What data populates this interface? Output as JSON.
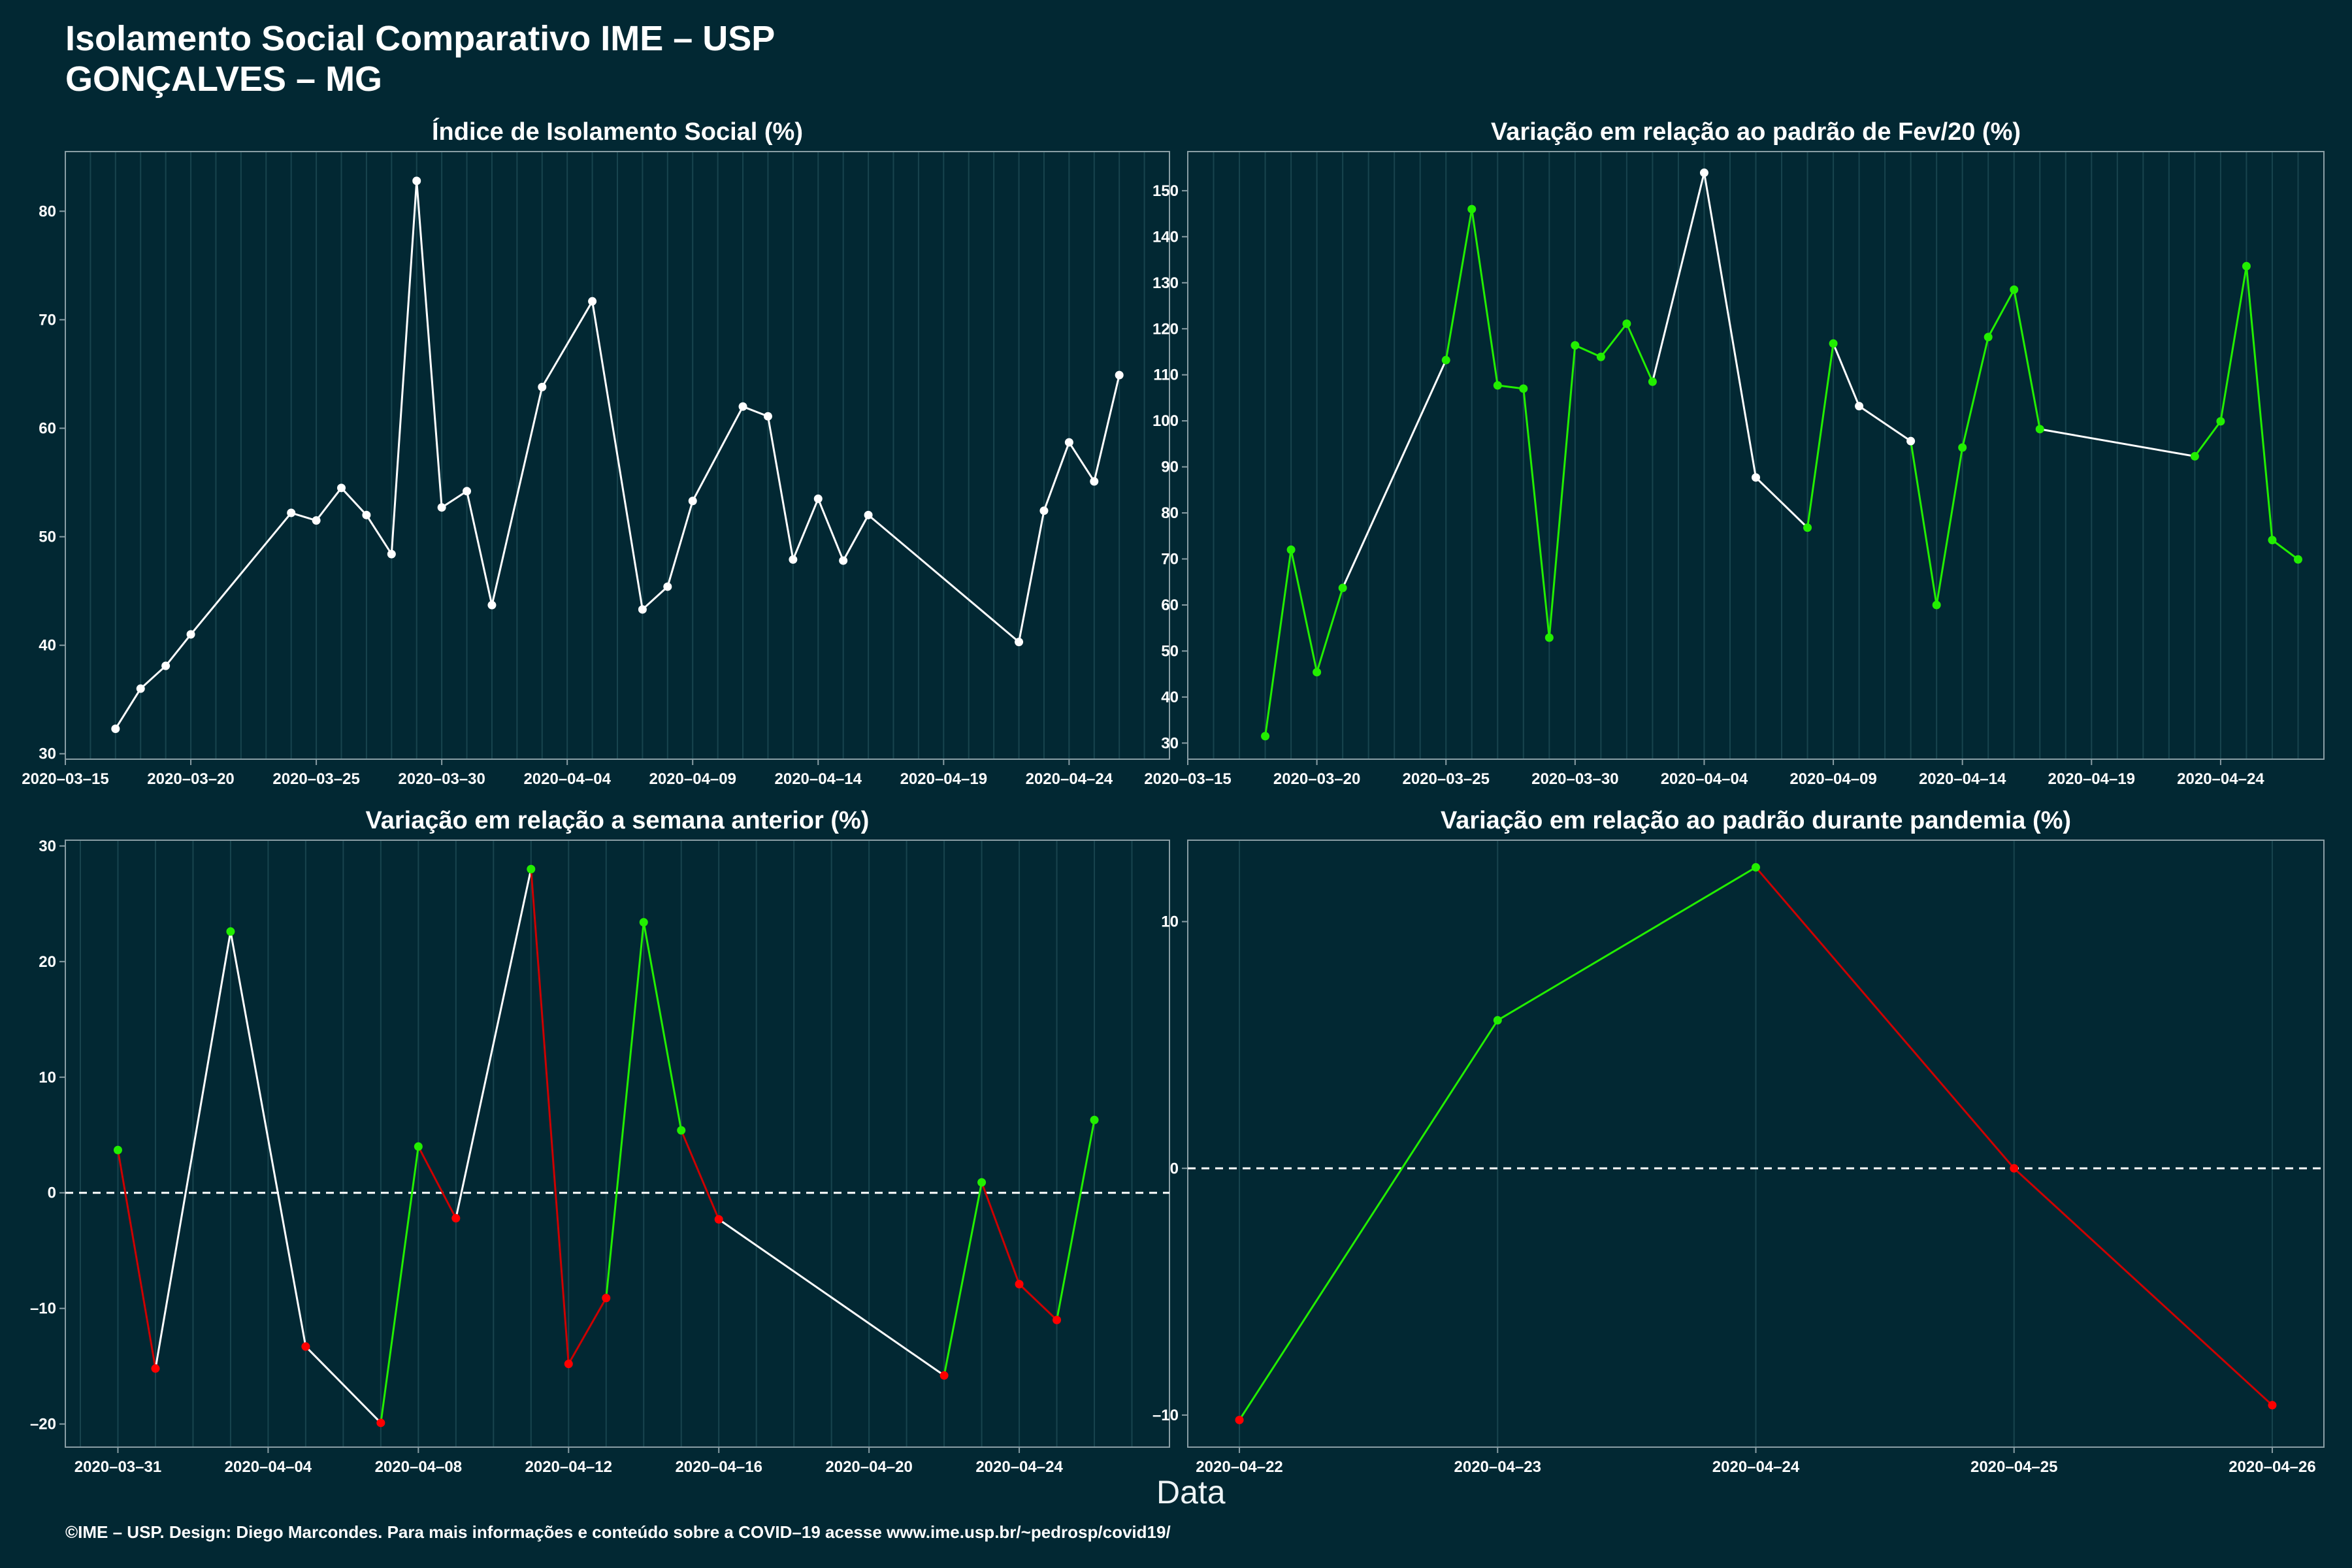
{
  "header": {
    "title_line1": "Isolamento Social Comparativo IME – USP",
    "title_line2": "GONÇALVES – MG"
  },
  "footer": {
    "credit": "©IME – USP. Design: Diego Marcondes. Para mais informações e conteúdo sobre a COVID–19 acesse www.ime.usp.br/~pedrosp/covid19/"
  },
  "shared_xlabel": "Data",
  "colors": {
    "background": "#022833",
    "line_neutral": "#ffffff",
    "line_up": "#22ee00",
    "line_down": "#cc0000",
    "point_up": "#22ee00",
    "point_down": "#ff0000",
    "grid": "#18444e",
    "axis_frame": "#8a9ea5"
  },
  "chart_data": [
    {
      "id": "p1",
      "type": "line",
      "title": "Índice de Isolamento Social (%)",
      "xlabel": "Data",
      "ylabel": "",
      "xlim": [
        "2020-03-15",
        "2020-04-28"
      ],
      "ylim": [
        29.5,
        85.5
      ],
      "xticks": [
        "2020-03-15",
        "2020-03-20",
        "2020-03-25",
        "2020-03-30",
        "2020-04-04",
        "2020-04-09",
        "2020-04-14",
        "2020-04-19",
        "2020-04-24"
      ],
      "yticks": [
        30,
        40,
        50,
        60,
        70,
        80
      ],
      "x": [
        "2020-03-17",
        "2020-03-18",
        "2020-03-19",
        "2020-03-20",
        "2020-03-24",
        "2020-03-25",
        "2020-03-26",
        "2020-03-27",
        "2020-03-28",
        "2020-03-29",
        "2020-03-30",
        "2020-03-31",
        "2020-04-01",
        "2020-04-03",
        "2020-04-05",
        "2020-04-07",
        "2020-04-08",
        "2020-04-09",
        "2020-04-11",
        "2020-04-12",
        "2020-04-13",
        "2020-04-14",
        "2020-04-15",
        "2020-04-16",
        "2020-04-22",
        "2020-04-23",
        "2020-04-24",
        "2020-04-25",
        "2020-04-26"
      ],
      "values": [
        32.3,
        36.0,
        38.1,
        41.0,
        52.2,
        51.5,
        54.5,
        52.0,
        48.4,
        82.8,
        52.7,
        54.2,
        43.7,
        63.8,
        71.7,
        43.3,
        45.4,
        53.3,
        62.0,
        61.1,
        47.9,
        53.5,
        47.8,
        52.0,
        40.3,
        52.4,
        58.7,
        55.1,
        64.9
      ],
      "segment_colors": [
        "neutral",
        "neutral",
        "neutral",
        "neutral",
        "neutral",
        "neutral",
        "neutral",
        "neutral",
        "neutral",
        "neutral",
        "neutral",
        "neutral",
        "neutral",
        "neutral",
        "neutral",
        "neutral",
        "neutral",
        "neutral",
        "neutral",
        "neutral",
        "neutral",
        "neutral",
        "neutral",
        "neutral",
        "neutral",
        "neutral",
        "neutral",
        "neutral"
      ],
      "point_colors": [
        "neutral",
        "neutral",
        "neutral",
        "neutral",
        "neutral",
        "neutral",
        "neutral",
        "neutral",
        "neutral",
        "neutral",
        "neutral",
        "neutral",
        "neutral",
        "neutral",
        "neutral",
        "neutral",
        "neutral",
        "neutral",
        "neutral",
        "neutral",
        "neutral",
        "neutral",
        "neutral",
        "neutral",
        "neutral",
        "neutral",
        "neutral",
        "neutral",
        "neutral"
      ],
      "hline": null,
      "grid": true
    },
    {
      "id": "p2",
      "type": "line",
      "title": "Variação em relação ao padrão de Fev/20 (%)",
      "xlabel": "Data",
      "ylabel": "",
      "xlim": [
        "2020-03-15",
        "2020-04-28"
      ],
      "ylim": [
        26.5,
        158.5
      ],
      "xticks": [
        "2020-03-15",
        "2020-03-20",
        "2020-03-25",
        "2020-03-30",
        "2020-04-04",
        "2020-04-09",
        "2020-04-14",
        "2020-04-19",
        "2020-04-24"
      ],
      "yticks": [
        30,
        40,
        50,
        60,
        70,
        80,
        90,
        100,
        110,
        120,
        130,
        140,
        150
      ],
      "x": [
        "2020-03-18",
        "2020-03-19",
        "2020-03-20",
        "2020-03-21",
        "2020-03-25",
        "2020-03-26",
        "2020-03-27",
        "2020-03-28",
        "2020-03-29",
        "2020-03-30",
        "2020-03-31",
        "2020-04-01",
        "2020-04-02",
        "2020-04-04",
        "2020-04-06",
        "2020-04-08",
        "2020-04-09",
        "2020-04-10",
        "2020-04-12",
        "2020-04-13",
        "2020-04-14",
        "2020-04-15",
        "2020-04-16",
        "2020-04-17",
        "2020-04-23",
        "2020-04-24",
        "2020-04-25",
        "2020-04-26",
        "2020-04-27"
      ],
      "values": [
        31.5,
        72.0,
        45.4,
        63.7,
        113.2,
        146.0,
        107.7,
        107.0,
        52.9,
        116.4,
        113.9,
        121.1,
        108.5,
        153.9,
        87.7,
        76.8,
        116.8,
        103.2,
        95.6,
        60.0,
        94.2,
        118.2,
        128.5,
        98.2,
        92.3,
        99.9,
        133.6,
        74.1,
        69.9
      ],
      "segment_colors": [
        "up",
        "up",
        "up",
        "neutral",
        "up",
        "up",
        "up",
        "up",
        "up",
        "up",
        "up",
        "up",
        "neutral",
        "neutral",
        "neutral",
        "up",
        "neutral",
        "neutral",
        "up",
        "up",
        "up",
        "up",
        "up",
        "neutral",
        "up",
        "up",
        "up",
        "up"
      ],
      "point_colors": [
        "up",
        "up",
        "up",
        "up",
        "up",
        "up",
        "up",
        "up",
        "up",
        "up",
        "up",
        "up",
        "up",
        "neutral",
        "neutral",
        "up",
        "up",
        "neutral",
        "neutral",
        "up",
        "up",
        "up",
        "up",
        "up",
        "up",
        "up",
        "up",
        "up",
        "up"
      ],
      "hline": null,
      "grid": true
    },
    {
      "id": "p3",
      "type": "line",
      "title": "Variação em relação a semana anterior (%)",
      "xlabel": "Data",
      "ylabel": "",
      "xlim": [
        "2020-03-29.6",
        "2020-04-28"
      ],
      "ylim": [
        -22,
        30.5
      ],
      "xticks": [
        "2020-03-31",
        "2020-04-04",
        "2020-04-08",
        "2020-04-12",
        "2020-04-16",
        "2020-04-20",
        "2020-04-24"
      ],
      "yticks": [
        -20,
        -10,
        0,
        10,
        20,
        30
      ],
      "x": [
        "2020-03-31",
        "2020-04-01",
        "2020-04-03",
        "2020-04-05",
        "2020-04-07",
        "2020-04-08",
        "2020-04-09",
        "2020-04-11",
        "2020-04-12",
        "2020-04-13",
        "2020-04-14",
        "2020-04-15",
        "2020-04-16",
        "2020-04-22",
        "2020-04-23",
        "2020-04-24",
        "2020-04-25",
        "2020-04-26"
      ],
      "values": [
        3.7,
        -15.2,
        22.6,
        -13.3,
        -19.9,
        4.0,
        -2.2,
        28.0,
        -14.8,
        -9.1,
        23.4,
        5.4,
        -2.3,
        -15.8,
        0.9,
        -7.9,
        -11.0,
        6.3
      ],
      "segment_colors": [
        "down",
        "neutral",
        "neutral",
        "neutral",
        "up",
        "down",
        "neutral",
        "down",
        "down",
        "up",
        "up",
        "down",
        "neutral",
        "up",
        "down",
        "down",
        "up"
      ],
      "point_colors": [
        "up",
        "down",
        "up",
        "down",
        "down",
        "up",
        "down",
        "up",
        "down",
        "down",
        "up",
        "up",
        "down",
        "down",
        "up",
        "down",
        "down",
        "up"
      ],
      "hline": 0,
      "grid": true
    },
    {
      "id": "p4",
      "type": "line",
      "title": "Variação em relação ao padrão durante pandemia (%)",
      "xlabel": "Data",
      "ylabel": "",
      "xlim": [
        "2020-04-21.8",
        "2020-04-26.2"
      ],
      "ylim": [
        -11.3,
        13.3
      ],
      "xticks": [
        "2020-04-22",
        "2020-04-23",
        "2020-04-24",
        "2020-04-25",
        "2020-04-26"
      ],
      "yticks": [
        -10,
        0,
        10
      ],
      "x": [
        "2020-04-22",
        "2020-04-23",
        "2020-04-24",
        "2020-04-25",
        "2020-04-26"
      ],
      "values": [
        -10.2,
        6.0,
        12.2,
        0.0,
        -9.6
      ],
      "segment_colors": [
        "up",
        "up",
        "down",
        "down"
      ],
      "point_colors": [
        "down",
        "up",
        "up",
        "down",
        "down"
      ],
      "hline": 0,
      "grid": true
    }
  ]
}
